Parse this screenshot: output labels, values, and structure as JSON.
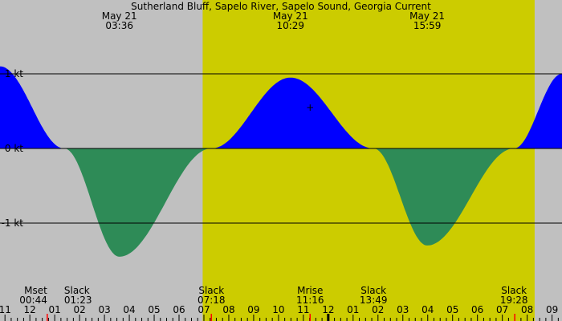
{
  "chart_data": {
    "type": "area",
    "title": "Sutherland Bluff, Sapelo River, Sapelo Sound, Georgia Current",
    "colors": {
      "background": "#c0c0c0",
      "daylight": "#cccc00",
      "flood": "#0000ff",
      "ebb": "#2e8b57",
      "reference_line": "#000000",
      "sun_tick": "#ff0000"
    },
    "x_unit": "hour",
    "x_range": [
      10.8,
      33.4
    ],
    "y_unit": "kt",
    "ylim": [
      -2.0,
      1.0
    ],
    "y_ticks": [
      {
        "value": 1,
        "label": "1 kt"
      },
      {
        "value": 0,
        "label": "0 kt"
      },
      {
        "value": -1,
        "label": "-1 kt"
      }
    ],
    "x_ticks": [
      {
        "hour": 11,
        "label": "11"
      },
      {
        "hour": 12,
        "label": "12"
      },
      {
        "hour": 13,
        "label": "01"
      },
      {
        "hour": 14,
        "label": "02"
      },
      {
        "hour": 15,
        "label": "03"
      },
      {
        "hour": 16,
        "label": "04"
      },
      {
        "hour": 17,
        "label": "05"
      },
      {
        "hour": 18,
        "label": "06"
      },
      {
        "hour": 19,
        "label": "07"
      },
      {
        "hour": 20,
        "label": "08"
      },
      {
        "hour": 21,
        "label": "09"
      },
      {
        "hour": 22,
        "label": "10"
      },
      {
        "hour": 23,
        "label": "11"
      },
      {
        "hour": 24,
        "label": "12"
      },
      {
        "hour": 25,
        "label": "01"
      },
      {
        "hour": 26,
        "label": "02"
      },
      {
        "hour": 27,
        "label": "03"
      },
      {
        "hour": 28,
        "label": "04"
      },
      {
        "hour": 29,
        "label": "05"
      },
      {
        "hour": 30,
        "label": "06"
      },
      {
        "hour": 31,
        "label": "07"
      },
      {
        "hour": 32,
        "label": "08"
      },
      {
        "hour": 33,
        "label": "09"
      }
    ],
    "daylight": {
      "start": 18.95,
      "end": 32.3
    },
    "sun_marks": [
      19.3,
      31.5
    ],
    "midnight_mark": 24,
    "series": [
      {
        "points": [
          {
            "x": 10.8,
            "y": 1.1
          },
          {
            "x": 13.38,
            "y": 0
          },
          {
            "x": 15.6,
            "y": -1.45
          },
          {
            "x": 19.3,
            "y": 0
          },
          {
            "x": 22.48,
            "y": 0.95
          },
          {
            "x": 25.82,
            "y": 0
          },
          {
            "x": 27.98,
            "y": -1.3
          },
          {
            "x": 31.47,
            "y": 0
          },
          {
            "x": 33.4,
            "y": 1.0
          }
        ]
      }
    ],
    "top_labels": [
      {
        "x": 15.6,
        "line1": "May 21",
        "line2": "03:36"
      },
      {
        "x": 22.48,
        "line1": "May 21",
        "line2": "10:29"
      },
      {
        "x": 27.98,
        "line1": "May 21",
        "line2": "15:59"
      }
    ],
    "bottom_labels": [
      {
        "x": 12.7,
        "line1": "Mset",
        "line2": "00:44",
        "align": "end"
      },
      {
        "x": 13.38,
        "line1": "Slack",
        "line2": "01:23",
        "align": "start"
      },
      {
        "x": 19.3,
        "line1": "Slack",
        "line2": "07:18",
        "align": "middle"
      },
      {
        "x": 23.27,
        "line1": "Mrise",
        "line2": "11:16",
        "align": "middle"
      },
      {
        "x": 25.82,
        "line1": "Slack",
        "line2": "13:49",
        "align": "middle"
      },
      {
        "x": 31.47,
        "line1": "Slack",
        "line2": "19:28",
        "align": "middle"
      }
    ],
    "plus_marker": {
      "x": 23.27,
      "y": 0.55
    },
    "grid": false,
    "legend": "none"
  }
}
